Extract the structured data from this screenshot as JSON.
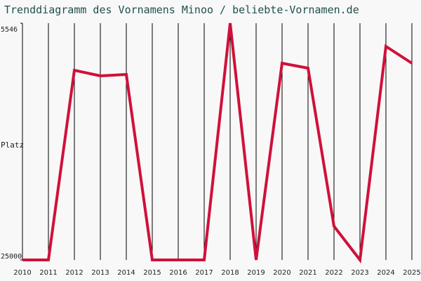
{
  "chart_data": {
    "type": "line",
    "title": "Trenddiagramm des Vornamens Minoo / beliebte-Vornamen.de",
    "y_label": "Platz",
    "x": [
      "2010",
      "2011",
      "2012",
      "2013",
      "2014",
      "2015",
      "2016",
      "2017",
      "2018",
      "2019",
      "2020",
      "2021",
      "2022",
      "2023",
      "2024",
      "2025"
    ],
    "series": [
      {
        "name": "Minoo",
        "color": "#d0103a",
        "values": [
          25000,
          25000,
          9414,
          9876,
          9760,
          25000,
          25000,
          25000,
          5546,
          25000,
          8837,
          9241,
          22230,
          25000,
          7451,
          8837
        ]
      }
    ],
    "ylim": [
      5546,
      25000
    ],
    "yticks": [
      5546,
      25000
    ],
    "y_inverted": true,
    "grid": "vertical"
  }
}
